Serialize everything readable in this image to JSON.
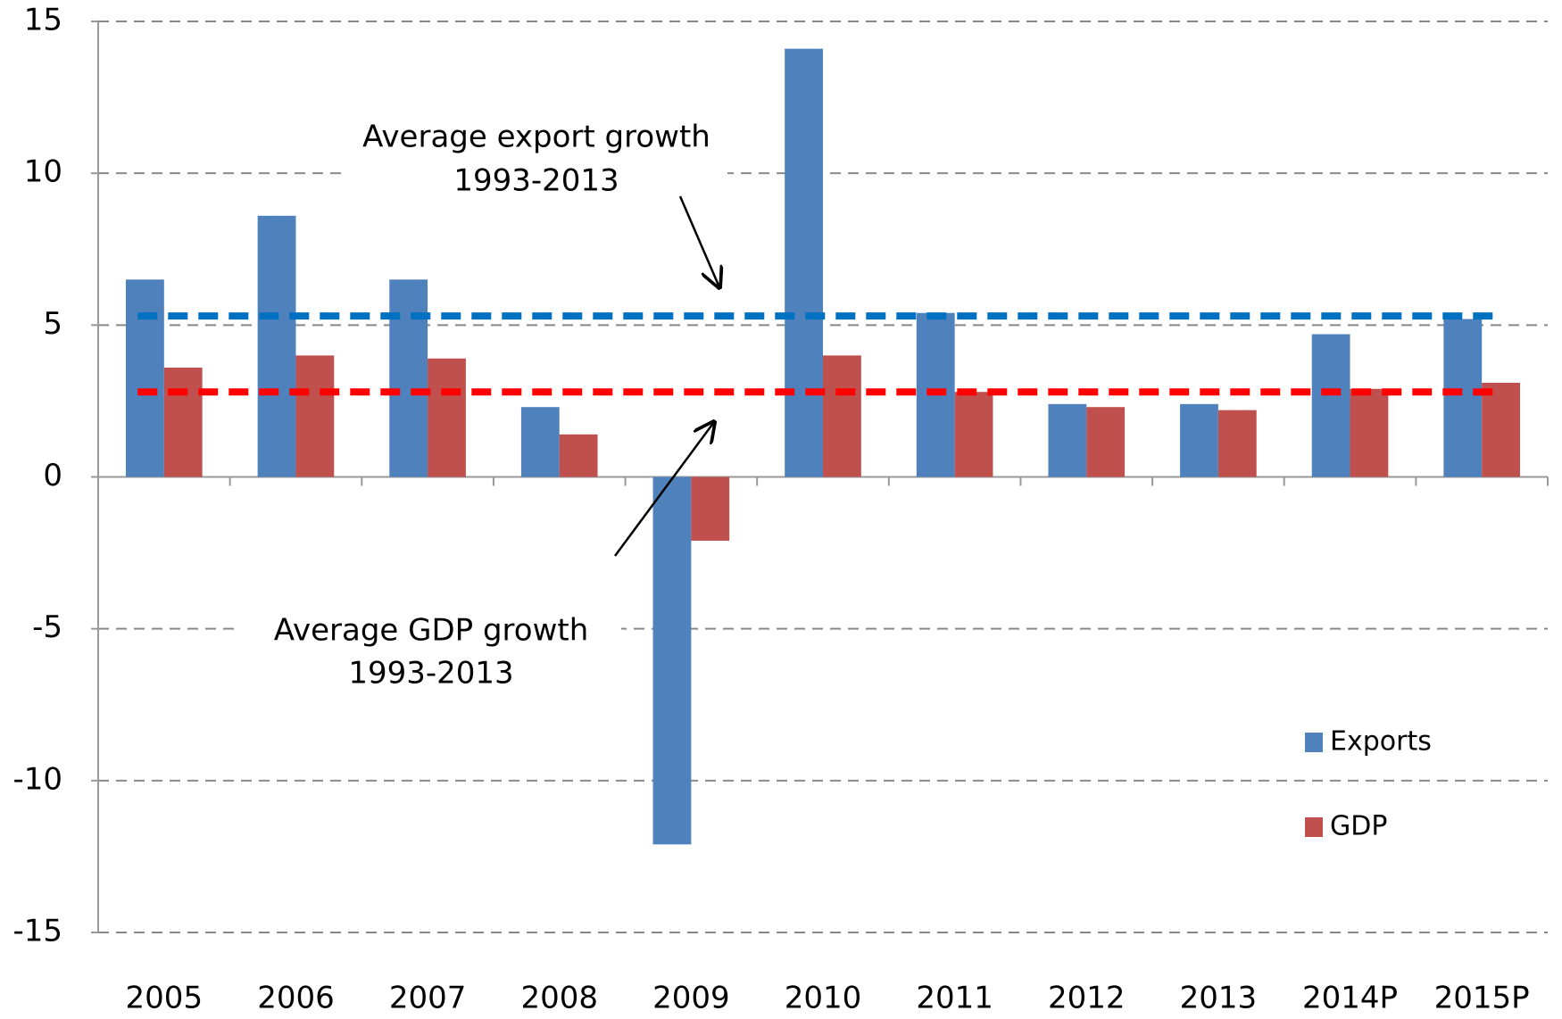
{
  "chart_data": {
    "type": "bar",
    "categories": [
      "2005",
      "2006",
      "2007",
      "2008",
      "2009",
      "2010",
      "2011",
      "2012",
      "2013",
      "2014P",
      "2015P"
    ],
    "series": [
      {
        "name": "Exports",
        "color": "#4f81bd",
        "values": [
          6.5,
          8.6,
          6.5,
          2.3,
          -12.1,
          14.1,
          5.4,
          2.4,
          2.4,
          4.7,
          5.2
        ]
      },
      {
        "name": "GDP",
        "color": "#c0504d",
        "values": [
          3.6,
          4.0,
          3.9,
          1.4,
          -2.1,
          4.0,
          2.8,
          2.3,
          2.2,
          2.9,
          3.1
        ]
      }
    ],
    "reference_lines": [
      {
        "value": 5.3,
        "color": "#0070c0"
      },
      {
        "value": 2.8,
        "color": "#ff0000"
      }
    ],
    "annotations": [
      {
        "lines": [
          "Average export growth",
          "1993-2013"
        ]
      },
      {
        "lines": [
          "Average GDP growth",
          "1993-2013"
        ]
      }
    ],
    "ylim": [
      -15,
      15
    ],
    "yticks": [
      -15,
      -10,
      -5,
      0,
      5,
      10,
      15
    ],
    "grid": true,
    "legend": "lower right"
  }
}
